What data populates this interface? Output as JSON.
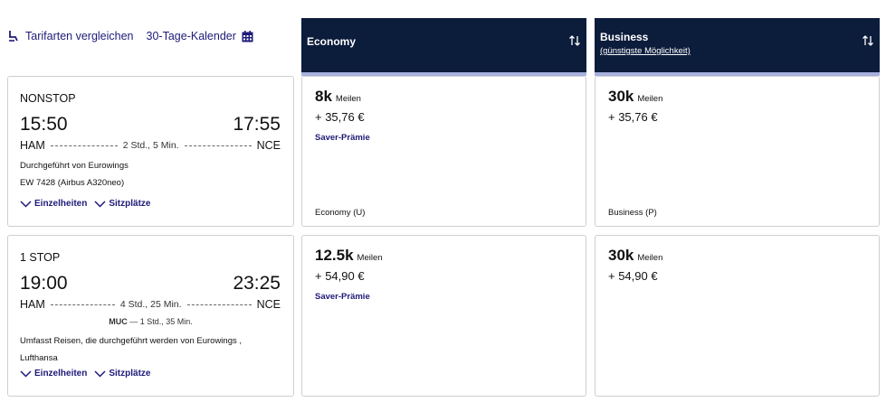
{
  "toolbar": {
    "compare_label": "Tarifarten vergleichen",
    "calendar_label": "30-Tage-Kalender"
  },
  "columns": {
    "economy": {
      "title": "Economy"
    },
    "business": {
      "title": "Business",
      "subtitle": "(günstigste Möglichkeit)"
    }
  },
  "flights": [
    {
      "type": "NONSTOP",
      "dep_time": "15:50",
      "arr_time": "17:55",
      "from": "HAM",
      "to": "NCE",
      "duration": "2 Std., 5 Min.",
      "stopover_code": "",
      "stopover_text": "",
      "operated": "Durchgeführt von Eurowings",
      "flight_info": "EW 7428 (Airbus A320neo)",
      "details_label": "Einzelheiten",
      "seats_label": "Sitzplätze",
      "economy": {
        "miles": "8k",
        "miles_unit": "Meilen",
        "price": "+ 35,76 €",
        "saver": "Saver-Prämie",
        "class": "Economy (U)"
      },
      "business": {
        "miles": "30k",
        "miles_unit": "Meilen",
        "price": "+ 35,76 €",
        "saver": "",
        "class": "Business (P)"
      }
    },
    {
      "type": "1 STOP",
      "dep_time": "19:00",
      "arr_time": "23:25",
      "from": "HAM",
      "to": "NCE",
      "duration": "4 Std., 25 Min.",
      "stopover_code": "MUC",
      "stopover_text": " — 1 Std., 35 Min.",
      "operated": "Umfasst Reisen, die durchgeführt werden von Eurowings , Lufthansa",
      "flight_info": "",
      "details_label": "Einzelheiten",
      "seats_label": "Sitzplätze",
      "economy": {
        "miles": "12.5k",
        "miles_unit": "Meilen",
        "price": "+ 54,90 €",
        "saver": "Saver-Prämie",
        "class": ""
      },
      "business": {
        "miles": "30k",
        "miles_unit": "Meilen",
        "price": "+ 54,90 €",
        "saver": "",
        "class": ""
      }
    }
  ],
  "icons": {
    "compare": "seat-icon",
    "calendar": "calendar-icon",
    "sort": "sort-arrows-icon",
    "expand": "chevron-down-icon"
  },
  "colors": {
    "header_bg": "#0c1c3b",
    "header_bar": "#a7b0dd",
    "link": "#1e1a78"
  }
}
